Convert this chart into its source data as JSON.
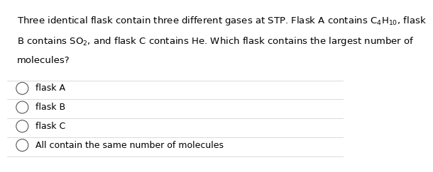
{
  "question_line1": "Three identical flask contain three different gases at STP. Flask A contains $\\mathregular{C_4H_{10}}$, flask",
  "question_line2": "B contains $\\mathregular{SO_2}$, and flask C contains He. Which flask contains the largest number of",
  "question_line3": "molecules?",
  "options": [
    "flask A",
    "flask B",
    "flask C",
    "All contain the same number of molecules"
  ],
  "bg_color": "#ffffff",
  "text_color": "#000000",
  "font_size": 9.5,
  "option_font_size": 9.0,
  "separator_color": "#cccccc",
  "separator_lw": 0.5
}
